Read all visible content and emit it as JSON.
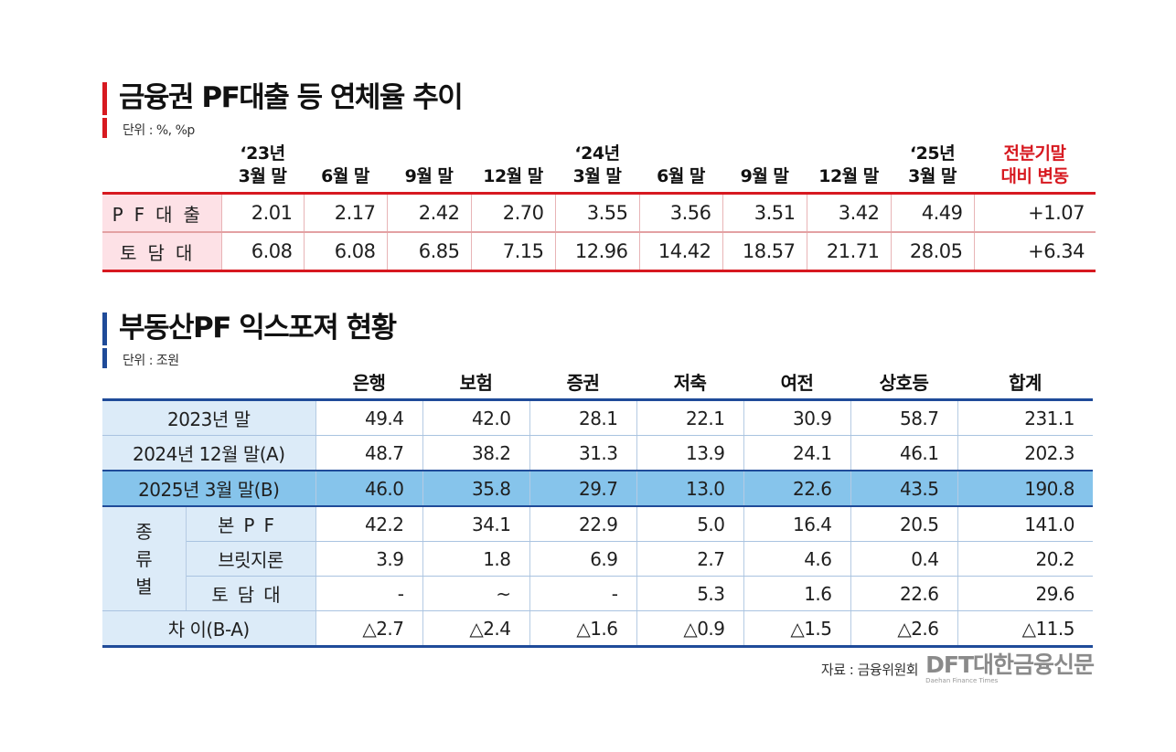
{
  "table1": {
    "title": "금융권 PF대출 등 연체율 추이",
    "unit": "단위 : %, %p",
    "headers": [
      {
        "l1": "‘23년",
        "l2": "3월 말"
      },
      {
        "l1": "",
        "l2": "6월 말"
      },
      {
        "l1": "",
        "l2": "9월 말"
      },
      {
        "l1": "",
        "l2": "12월 말"
      },
      {
        "l1": "‘24년",
        "l2": "3월 말"
      },
      {
        "l1": "",
        "l2": "6월 말"
      },
      {
        "l1": "",
        "l2": "9월 말"
      },
      {
        "l1": "",
        "l2": "12월 말"
      },
      {
        "l1": "‘25년",
        "l2": "3월 말"
      },
      {
        "l1": "전분기말",
        "l2": "대비 변동"
      }
    ],
    "rows": [
      {
        "label": "PF대출",
        "values": [
          "2.01",
          "2.17",
          "2.42",
          "2.70",
          "3.55",
          "3.56",
          "3.51",
          "3.42",
          "4.49",
          "+1.07"
        ]
      },
      {
        "label": "토담대",
        "values": [
          "6.08",
          "6.08",
          "6.85",
          "7.15",
          "12.96",
          "14.42",
          "18.57",
          "21.71",
          "28.05",
          "+6.34"
        ]
      }
    ]
  },
  "table2": {
    "title": "부동산PF 익스포져 현황",
    "unit": "단위 : 조원",
    "headers": [
      "은행",
      "보험",
      "증권",
      "저축",
      "여전",
      "상호등",
      "합계"
    ],
    "rows": [
      {
        "label": "2023년 말",
        "values": [
          "49.4",
          "42.0",
          "28.1",
          "22.1",
          "30.9",
          "58.7",
          "231.1"
        ]
      },
      {
        "label": "2024년 12월 말(A)",
        "values": [
          "48.7",
          "38.2",
          "31.3",
          "13.9",
          "24.1",
          "46.1",
          "202.3"
        ]
      },
      {
        "label": "2025년 3월 말(B)",
        "values": [
          "46.0",
          "35.8",
          "29.7",
          "13.0",
          "22.6",
          "43.5",
          "190.8"
        ]
      }
    ],
    "group": {
      "label_chars": [
        "종",
        "류",
        "별"
      ],
      "rows": [
        {
          "label": "본PF",
          "values": [
            "42.2",
            "34.1",
            "22.9",
            "5.0",
            "16.4",
            "20.5",
            "141.0"
          ]
        },
        {
          "label": "브릿지론",
          "values": [
            "3.9",
            "1.8",
            "6.9",
            "2.7",
            "4.6",
            "0.4",
            "20.2"
          ]
        },
        {
          "label": "토담대",
          "values": [
            "-",
            "~",
            "-",
            "5.3",
            "1.6",
            "22.6",
            "29.6"
          ]
        }
      ]
    },
    "diff": {
      "label": "차 이(B-A)",
      "values": [
        "△2.7",
        "△2.4",
        "△1.6",
        "△0.9",
        "△1.5",
        "△2.6",
        "△11.5"
      ]
    }
  },
  "footer": {
    "source": "자료 : 금융위원회",
    "logo_main": "DFT대한금융신문",
    "logo_sub": "Daehan Finance Times"
  },
  "colors": {
    "accent_red": "#d71920",
    "accent_blue": "#1f4b99",
    "pink_label": "#fde1e6",
    "blue_label": "#dcebf8",
    "highlight_row": "#86c4eb"
  }
}
